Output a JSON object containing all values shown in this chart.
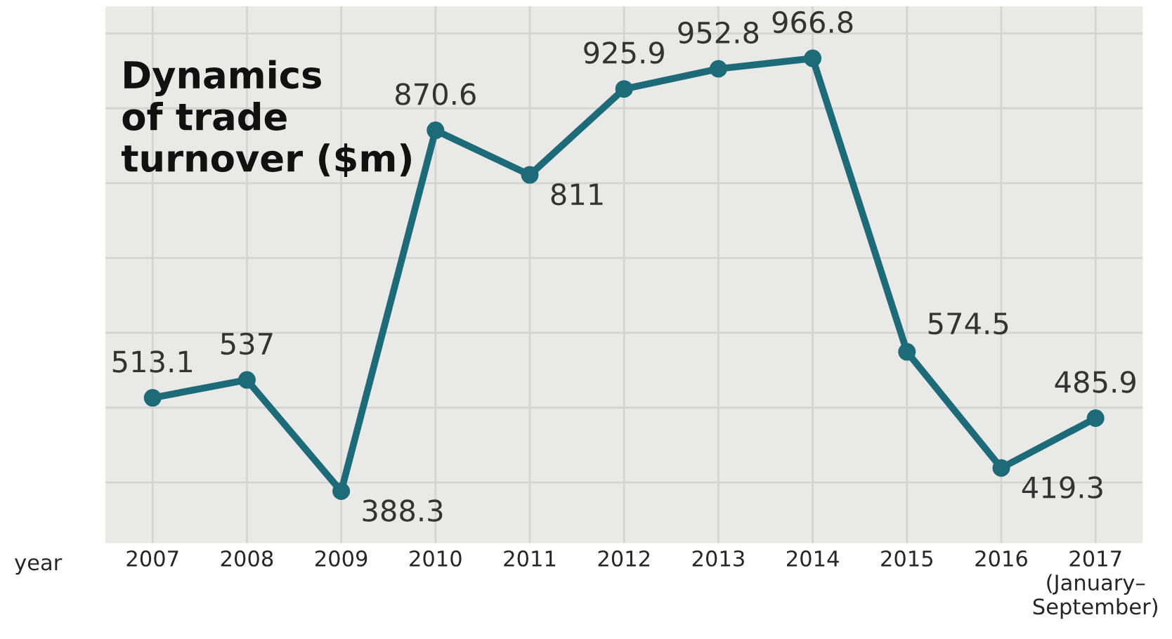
{
  "chart_data": {
    "type": "line",
    "title": "Dynamics\nof trade\nturnover ($m)",
    "xlabel": "year",
    "categories": [
      "2007",
      "2008",
      "2009",
      "2010",
      "2011",
      "2012",
      "2013",
      "2014",
      "2015",
      "2016",
      "2017\n(January–\nSeptember)"
    ],
    "series": [
      {
        "color": "#1d6b78",
        "values": [
          513.1,
          537,
          388.3,
          870.6,
          811,
          925.9,
          952.8,
          966.8,
          574.5,
          419.3,
          485.9
        ]
      }
    ],
    "data_labels": true,
    "marker": "circle",
    "line_style": "solid",
    "grid": true,
    "tick_labels": "x",
    "legend": false
  }
}
